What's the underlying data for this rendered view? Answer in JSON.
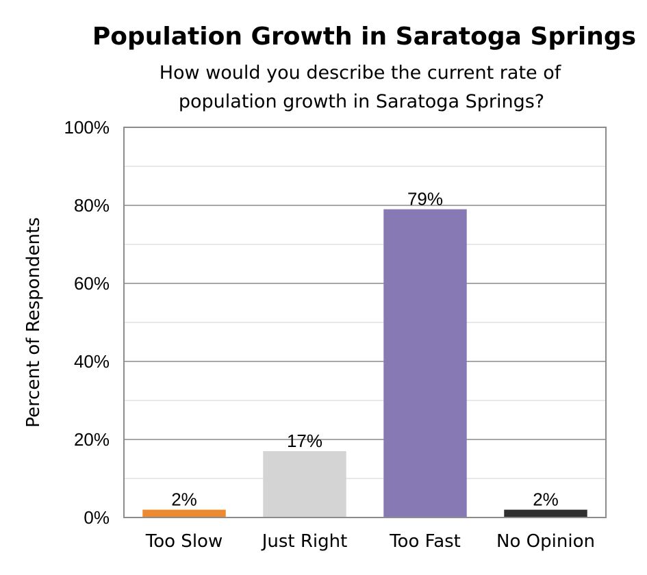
{
  "chart_data": {
    "type": "bar",
    "title": "Population Growth in Saratoga Springs",
    "subtitle_lines": [
      "How would you describe the current rate of",
      "population growth in Saratoga Springs?"
    ],
    "xlabel": "",
    "ylabel": "Percent of Respondents",
    "ylim": [
      0,
      100
    ],
    "yticks": [
      0,
      20,
      40,
      60,
      80,
      100
    ],
    "ytick_labels": [
      "0%",
      "20%",
      "40%",
      "60%",
      "80%",
      "100%"
    ],
    "minor_gridlines": [
      10,
      30,
      50,
      70,
      90
    ],
    "grid": true,
    "categories": [
      "Too Slow",
      "Just Right",
      "Too Fast",
      "No Opinion"
    ],
    "values": [
      2,
      17,
      79,
      2
    ],
    "value_labels": [
      "2%",
      "17%",
      "79%",
      "2%"
    ],
    "colors": [
      "#ED8A2F",
      "#D4D4D4",
      "#8679B4",
      "#2F2F2F"
    ],
    "gridline_color": "#A6A6A6",
    "frame_color": "#8C8C8C"
  }
}
